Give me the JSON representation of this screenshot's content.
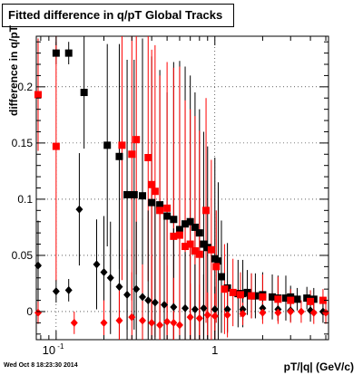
{
  "title": "Fitted difference in q/pT  Global Tracks",
  "timestamp": "Wed Oct  8 18:23:30 2014",
  "chart_data": {
    "type": "scatter",
    "title": "Fitted difference in q/pT  Global Tracks",
    "xlabel": "pT/|q| (GeV/c)",
    "ylabel": "difference in q/pT",
    "xscale": "log",
    "xlim": [
      0.075,
      5.2
    ],
    "ylim": [
      -0.025,
      0.245
    ],
    "grid": true,
    "xticks": [
      {
        "v": 0.1,
        "label": "10^-1"
      },
      {
        "v": 1,
        "label": "1"
      }
    ],
    "yticks": [
      0,
      0.05,
      0.1,
      0.15,
      0.2
    ],
    "series": [
      {
        "marker": "square",
        "color": "#000000",
        "points": [
          [
            0.1,
            0.23,
            0.01
          ],
          [
            0.12,
            0.23,
            0.01
          ],
          [
            0.15,
            0.195,
            0.05
          ],
          [
            0.21,
            0.148,
            0.09
          ],
          [
            0.25,
            0.138,
            0.1
          ],
          [
            0.28,
            0.104,
            0.12
          ],
          [
            0.31,
            0.104,
            0.12
          ],
          [
            0.35,
            0.103,
            0.14
          ],
          [
            0.4,
            0.097,
            0.13
          ],
          [
            0.45,
            0.095,
            0.12
          ],
          [
            0.5,
            0.085,
            0.11
          ],
          [
            0.55,
            0.082,
            0.14
          ],
          [
            0.6,
            0.073,
            0.15
          ],
          [
            0.65,
            0.078,
            0.14
          ],
          [
            0.7,
            0.08,
            0.13
          ],
          [
            0.75,
            0.075,
            0.12
          ],
          [
            0.8,
            0.07,
            0.11
          ],
          [
            0.85,
            0.06,
            0.1
          ],
          [
            0.9,
            0.057,
            0.09
          ],
          [
            1.0,
            0.047,
            0.09
          ],
          [
            1.05,
            0.045,
            0.07
          ],
          [
            1.1,
            0.031,
            0.05
          ],
          [
            1.2,
            0.021,
            0.04
          ],
          [
            1.4,
            0.016,
            0.03
          ],
          [
            1.5,
            0.016,
            0.03
          ],
          [
            1.6,
            0.017,
            0.02
          ],
          [
            1.7,
            0.014,
            0.02
          ],
          [
            1.8,
            0.014,
            0.02
          ],
          [
            2.0,
            0.015,
            0.02
          ],
          [
            2.3,
            0.013,
            0.02
          ],
          [
            2.5,
            0.012,
            0.02
          ],
          [
            2.8,
            0.012,
            0.02
          ],
          [
            3.0,
            0.013,
            0.01
          ],
          [
            3.3,
            0.011,
            0.01
          ],
          [
            3.8,
            0.012,
            0.01
          ],
          [
            4.2,
            0.011,
            0.01
          ]
        ]
      },
      {
        "marker": "square",
        "color": "#ff0000",
        "points": [
          [
            0.077,
            0.193,
            0.05
          ],
          [
            0.1,
            0.147,
            0.12
          ],
          [
            0.26,
            0.148,
            0.12
          ],
          [
            0.3,
            0.14,
            0.13
          ],
          [
            0.32,
            0.153,
            0.12
          ],
          [
            0.38,
            0.137,
            0.11
          ],
          [
            0.4,
            0.113,
            0.12
          ],
          [
            0.42,
            0.107,
            0.13
          ],
          [
            0.45,
            0.09,
            0.12
          ],
          [
            0.5,
            0.092,
            0.13
          ],
          [
            0.55,
            0.067,
            0.15
          ],
          [
            0.6,
            0.068,
            0.15
          ],
          [
            0.65,
            0.058,
            0.13
          ],
          [
            0.7,
            0.06,
            0.12
          ],
          [
            0.75,
            0.054,
            0.12
          ],
          [
            0.8,
            0.051,
            0.11
          ],
          [
            0.88,
            0.09,
            0.1
          ],
          [
            0.95,
            0.055,
            0.08
          ],
          [
            1.02,
            0.04,
            0.05
          ],
          [
            1.15,
            0.02,
            0.04
          ],
          [
            1.3,
            0.017,
            0.03
          ],
          [
            1.45,
            0.015,
            0.02
          ],
          [
            1.7,
            0.014,
            0.02
          ],
          [
            2.0,
            0.013,
            0.02
          ],
          [
            2.5,
            0.011,
            0.02
          ],
          [
            3.0,
            0.01,
            0.01
          ],
          [
            4.0,
            0.009,
            0.01
          ],
          [
            4.8,
            0.01,
            0.01
          ]
        ]
      },
      {
        "marker": "diamond",
        "color": "#000000",
        "points": [
          [
            0.077,
            0.041,
            0.04
          ],
          [
            0.1,
            0.018,
            0.01
          ],
          [
            0.12,
            0.019,
            0.01
          ],
          [
            0.14,
            0.091,
            0.05
          ],
          [
            0.18,
            0.042,
            0.04
          ],
          [
            0.2,
            0.035,
            0.05
          ],
          [
            0.22,
            0.03,
            0.05
          ],
          [
            0.25,
            0.022,
            0.05
          ],
          [
            0.28,
            0.015,
            0.04
          ],
          [
            0.32,
            0.02,
            0.06
          ],
          [
            0.35,
            0.013,
            0.07
          ],
          [
            0.38,
            0.01,
            0.08
          ],
          [
            0.42,
            0.008,
            0.09
          ],
          [
            0.48,
            0.006,
            0.08
          ],
          [
            0.55,
            0.004,
            0.07
          ],
          [
            0.65,
            0.003,
            0.05
          ],
          [
            0.75,
            0.002,
            0.04
          ],
          [
            0.85,
            0.003,
            0.03
          ],
          [
            1.0,
            0.002,
            0.02
          ],
          [
            1.2,
            0.002,
            0.02
          ],
          [
            1.5,
            0.002,
            0.01
          ],
          [
            2.0,
            0.003,
            0.01
          ],
          [
            2.5,
            0.002,
            0.01
          ],
          [
            3.0,
            0.001,
            0.01
          ],
          [
            4.0,
            0.001,
            0.01
          ],
          [
            4.8,
            0.0,
            0.01
          ]
        ]
      },
      {
        "marker": "diamond",
        "color": "#ff0000",
        "points": [
          [
            0.077,
            -0.001,
            0.01
          ],
          [
            0.13,
            -0.01,
            0.01
          ],
          [
            0.2,
            -0.01,
            0.02
          ],
          [
            0.25,
            -0.008,
            0.03
          ],
          [
            0.3,
            -0.005,
            0.04
          ],
          [
            0.35,
            -0.008,
            0.05
          ],
          [
            0.4,
            -0.01,
            0.06
          ],
          [
            0.45,
            -0.012,
            0.06
          ],
          [
            0.5,
            -0.009,
            0.05
          ],
          [
            0.55,
            -0.01,
            0.04
          ],
          [
            0.6,
            -0.012,
            0.04
          ],
          [
            0.7,
            -0.005,
            0.03
          ],
          [
            0.8,
            -0.006,
            0.03
          ],
          [
            0.9,
            -0.003,
            0.02
          ],
          [
            1.0,
            -0.004,
            0.02
          ],
          [
            1.2,
            -0.003,
            0.02
          ],
          [
            1.5,
            -0.002,
            0.01
          ],
          [
            2.0,
            -0.001,
            0.01
          ],
          [
            2.5,
            -0.001,
            0.01
          ],
          [
            3.0,
            0.0,
            0.01
          ],
          [
            3.5,
            0.0,
            0.01
          ],
          [
            4.2,
            -0.001,
            0.01
          ],
          [
            5.0,
            -0.001,
            0.01
          ]
        ]
      }
    ]
  }
}
